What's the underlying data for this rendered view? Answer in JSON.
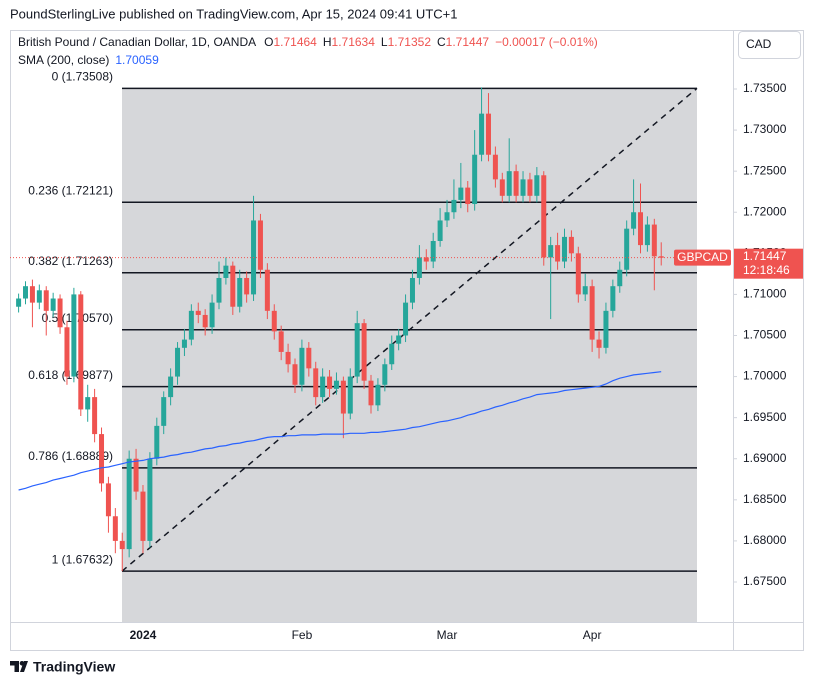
{
  "header": "PoundSterlingLive published on TradingView.com, Apr 15, 2024 09:41 UTC+1",
  "footer": "TradingView",
  "chart_data": {
    "type": "candlestick",
    "title": "British Pound / Canadian Dollar, 1D, OANDA",
    "ohlc_labels": [
      "O",
      "H",
      "L",
      "C"
    ],
    "change": "−0.00017 (−0.01%)",
    "currency": "CAD",
    "symbol": "GBPCAD",
    "countdown": "12:18:46",
    "up_color": "#26a69a",
    "down_color": "#ef5350",
    "categories": [
      null,
      null,
      null,
      null,
      null,
      null,
      null,
      null,
      null,
      null,
      null,
      null,
      null,
      null,
      null,
      null,
      null,
      null,
      "2024",
      null,
      null,
      null,
      null,
      null,
      null,
      null,
      null,
      null,
      null,
      null,
      null,
      null,
      null,
      null,
      null,
      null,
      null,
      null,
      null,
      null,
      null,
      "Feb",
      null,
      null,
      null,
      null,
      null,
      null,
      null,
      null,
      null,
      null,
      null,
      null,
      null,
      null,
      null,
      null,
      null,
      null,
      null,
      null,
      "Mar",
      null,
      null,
      null,
      null,
      null,
      null,
      null,
      null,
      null,
      null,
      null,
      null,
      null,
      null,
      null,
      null,
      null,
      null,
      null,
      null,
      "Apr",
      null,
      null,
      null,
      null,
      null,
      null,
      null,
      null,
      null,
      null
    ],
    "series": {
      "open": [
        1.7085,
        1.7095,
        1.711,
        1.709,
        1.7105,
        1.708,
        1.7095,
        1.706,
        1.7,
        1.71,
        1.696,
        1.6975,
        1.693,
        1.687,
        1.683,
        1.68,
        1.679,
        1.69,
        1.686,
        1.68,
        1.69,
        1.694,
        1.6975,
        1.7,
        1.7035,
        1.7045,
        1.708,
        1.7075,
        1.706,
        1.709,
        1.712,
        1.7135,
        1.7085,
        1.712,
        1.71,
        1.719,
        1.713,
        1.708,
        1.7055,
        1.703,
        1.7015,
        1.699,
        1.7035,
        1.701,
        1.6975,
        1.7,
        1.6985,
        1.6995,
        1.6955,
        1.7,
        1.7065,
        1.6995,
        1.6965,
        1.699,
        1.7015,
        1.704,
        1.705,
        1.709,
        1.712,
        1.7145,
        1.714,
        1.7165,
        1.719,
        1.72,
        1.7215,
        1.723,
        1.721,
        1.727,
        1.732,
        1.727,
        1.724,
        1.722,
        1.725,
        1.722,
        1.724,
        1.722,
        1.7245,
        1.7145,
        1.716,
        1.714,
        1.717,
        1.715,
        1.71,
        1.711,
        1.7045,
        1.7035,
        1.708,
        1.711,
        1.713,
        1.718,
        1.72,
        1.716,
        1.7185,
        1.71464
      ],
      "high": [
        1.7101,
        1.7116,
        1.7118,
        1.7112,
        1.711,
        1.7102,
        1.71,
        1.7068,
        1.7108,
        1.7104,
        1.699,
        1.6985,
        1.6938,
        1.6878,
        1.684,
        1.681,
        1.691,
        1.6912,
        1.6868,
        1.6908,
        1.695,
        1.6982,
        1.701,
        1.7042,
        1.7058,
        1.7088,
        1.709,
        1.7082,
        1.71,
        1.714,
        1.7145,
        1.714,
        1.713,
        1.7128,
        1.722,
        1.7198,
        1.7138,
        1.7088,
        1.7062,
        1.704,
        1.7022,
        1.7045,
        1.7042,
        1.7018,
        1.701,
        1.7008,
        1.7005,
        1.7,
        1.701,
        1.708,
        1.707,
        1.7002,
        1.6998,
        1.7022,
        1.705,
        1.7058,
        1.71,
        1.713,
        1.716,
        1.7155,
        1.7175,
        1.7205,
        1.7215,
        1.724,
        1.726,
        1.7238,
        1.73,
        1.7352,
        1.7345,
        1.728,
        1.7248,
        1.729,
        1.7258,
        1.725,
        1.7248,
        1.7255,
        1.725,
        1.717,
        1.7175,
        1.718,
        1.7178,
        1.7158,
        1.7125,
        1.7118,
        1.7055,
        1.709,
        1.7118,
        1.714,
        1.719,
        1.724,
        1.7235,
        1.7195,
        1.7192,
        1.71634
      ],
      "low": [
        1.7078,
        1.7088,
        1.706,
        1.7082,
        1.705,
        1.7072,
        1.7052,
        1.699,
        1.6993,
        1.6952,
        1.6945,
        1.692,
        1.686,
        1.681,
        1.6785,
        1.67632,
        1.678,
        1.685,
        1.6785,
        1.6792,
        1.6892,
        1.693,
        1.6965,
        1.699,
        1.7025,
        1.7038,
        1.7065,
        1.705,
        1.7052,
        1.7082,
        1.7112,
        1.7075,
        1.7078,
        1.709,
        1.7092,
        1.712,
        1.707,
        1.7045,
        1.702,
        1.7005,
        1.698,
        1.6982,
        1.7,
        1.6965,
        1.6968,
        1.6975,
        1.6978,
        1.6925,
        1.6948,
        1.6992,
        1.6985,
        1.6955,
        1.6958,
        1.6982,
        1.7008,
        1.7032,
        1.7042,
        1.7082,
        1.7112,
        1.713,
        1.7132,
        1.7158,
        1.7182,
        1.7192,
        1.7205,
        1.72,
        1.7202,
        1.7262,
        1.7262,
        1.723,
        1.7212,
        1.7212,
        1.7212,
        1.7212,
        1.7212,
        1.7212,
        1.7135,
        1.707,
        1.713,
        1.7132,
        1.714,
        1.709,
        1.7092,
        1.703,
        1.7022,
        1.7028,
        1.7072,
        1.7102,
        1.7122,
        1.7172,
        1.715,
        1.7152,
        1.7105,
        1.71352
      ],
      "close": [
        1.7095,
        1.711,
        1.709,
        1.7105,
        1.708,
        1.7095,
        1.706,
        1.7,
        1.71,
        1.696,
        1.6975,
        1.693,
        1.687,
        1.683,
        1.68,
        1.679,
        1.69,
        1.686,
        1.68,
        1.69,
        1.694,
        1.6975,
        1.7,
        1.7035,
        1.7045,
        1.708,
        1.7075,
        1.706,
        1.709,
        1.712,
        1.7135,
        1.7085,
        1.712,
        1.71,
        1.719,
        1.713,
        1.708,
        1.7055,
        1.703,
        1.7015,
        1.699,
        1.7035,
        1.701,
        1.6975,
        1.7,
        1.6985,
        1.6995,
        1.6955,
        1.7,
        1.7065,
        1.6995,
        1.6965,
        1.699,
        1.7015,
        1.704,
        1.705,
        1.709,
        1.712,
        1.7145,
        1.714,
        1.7165,
        1.719,
        1.72,
        1.7215,
        1.723,
        1.721,
        1.727,
        1.732,
        1.727,
        1.724,
        1.722,
        1.725,
        1.722,
        1.724,
        1.722,
        1.7245,
        1.7145,
        1.716,
        1.714,
        1.717,
        1.715,
        1.71,
        1.711,
        1.7045,
        1.7035,
        1.708,
        1.711,
        1.713,
        1.718,
        1.72,
        1.716,
        1.7185,
        1.71464,
        1.71447
      ]
    },
    "sma": {
      "name": "SMA (200, close)",
      "color": "#2962ff",
      "values": [
        1.6862,
        1.6864,
        1.6867,
        1.6869,
        1.6871,
        1.6874,
        1.6876,
        1.6878,
        1.688,
        1.6883,
        1.6885,
        1.6887,
        1.6889,
        1.689,
        1.6892,
        1.6894,
        1.6896,
        1.6897,
        1.6898,
        1.69,
        1.6901,
        1.6902,
        1.6904,
        1.6905,
        1.6907,
        1.6908,
        1.691,
        1.6912,
        1.6913,
        1.6915,
        1.6916,
        1.6918,
        1.6919,
        1.6921,
        1.6922,
        1.6924,
        1.6926,
        1.6927,
        1.6927,
        1.6928,
        1.6928,
        1.6929,
        1.6929,
        1.6929,
        1.693,
        1.693,
        1.693,
        1.693,
        1.6931,
        1.6931,
        1.6931,
        1.6932,
        1.6932,
        1.6933,
        1.6934,
        1.6935,
        1.6936,
        1.6938,
        1.6939,
        1.6941,
        1.6943,
        1.6945,
        1.6946,
        1.6948,
        1.695,
        1.6953,
        1.6955,
        1.6958,
        1.696,
        1.6963,
        1.6965,
        1.6968,
        1.697,
        1.6973,
        1.6975,
        1.6978,
        1.6979,
        1.698,
        1.6981,
        1.6983,
        1.6984,
        1.6985,
        1.6986,
        1.6987,
        1.6988,
        1.6991,
        1.6995,
        1.6998,
        1.7,
        1.7002,
        1.7003,
        1.7004,
        1.7005,
        1.70059
      ]
    },
    "fib": [
      {
        "label": "0 (1.73508)",
        "value": 1.73508
      },
      {
        "label": "0.236 (1.72121)",
        "value": 1.72121
      },
      {
        "label": "0.382 (1.71263)",
        "value": 1.71263
      },
      {
        "label": "0.5 (1.70570)",
        "value": 1.7057
      },
      {
        "label": "0.618 (1.69877)",
        "value": 1.69877
      },
      {
        "label": "0.786 (1.68889)",
        "value": 1.68889
      },
      {
        "label": "1 (1.67632)",
        "value": 1.67632
      }
    ],
    "ylim": [
      1.67013,
      1.74218
    ],
    "yticks": [
      {
        "value": 1.675,
        "label": "1.67500"
      },
      {
        "value": 1.68,
        "label": "1.68000"
      },
      {
        "value": 1.685,
        "label": "1.68500"
      },
      {
        "value": 1.69,
        "label": "1.69000"
      },
      {
        "value": 1.695,
        "label": "1.69500"
      },
      {
        "value": 1.7,
        "label": "1.70000"
      },
      {
        "value": 1.705,
        "label": "1.70500"
      },
      {
        "value": 1.71,
        "label": "1.71000"
      },
      {
        "value": 1.715,
        "label": "1.71500"
      },
      {
        "value": 1.72,
        "label": "1.72000"
      },
      {
        "value": 1.725,
        "label": "1.72500"
      },
      {
        "value": 1.73,
        "label": "1.73000"
      },
      {
        "value": 1.735,
        "label": "1.73500"
      }
    ],
    "grid": false
  }
}
